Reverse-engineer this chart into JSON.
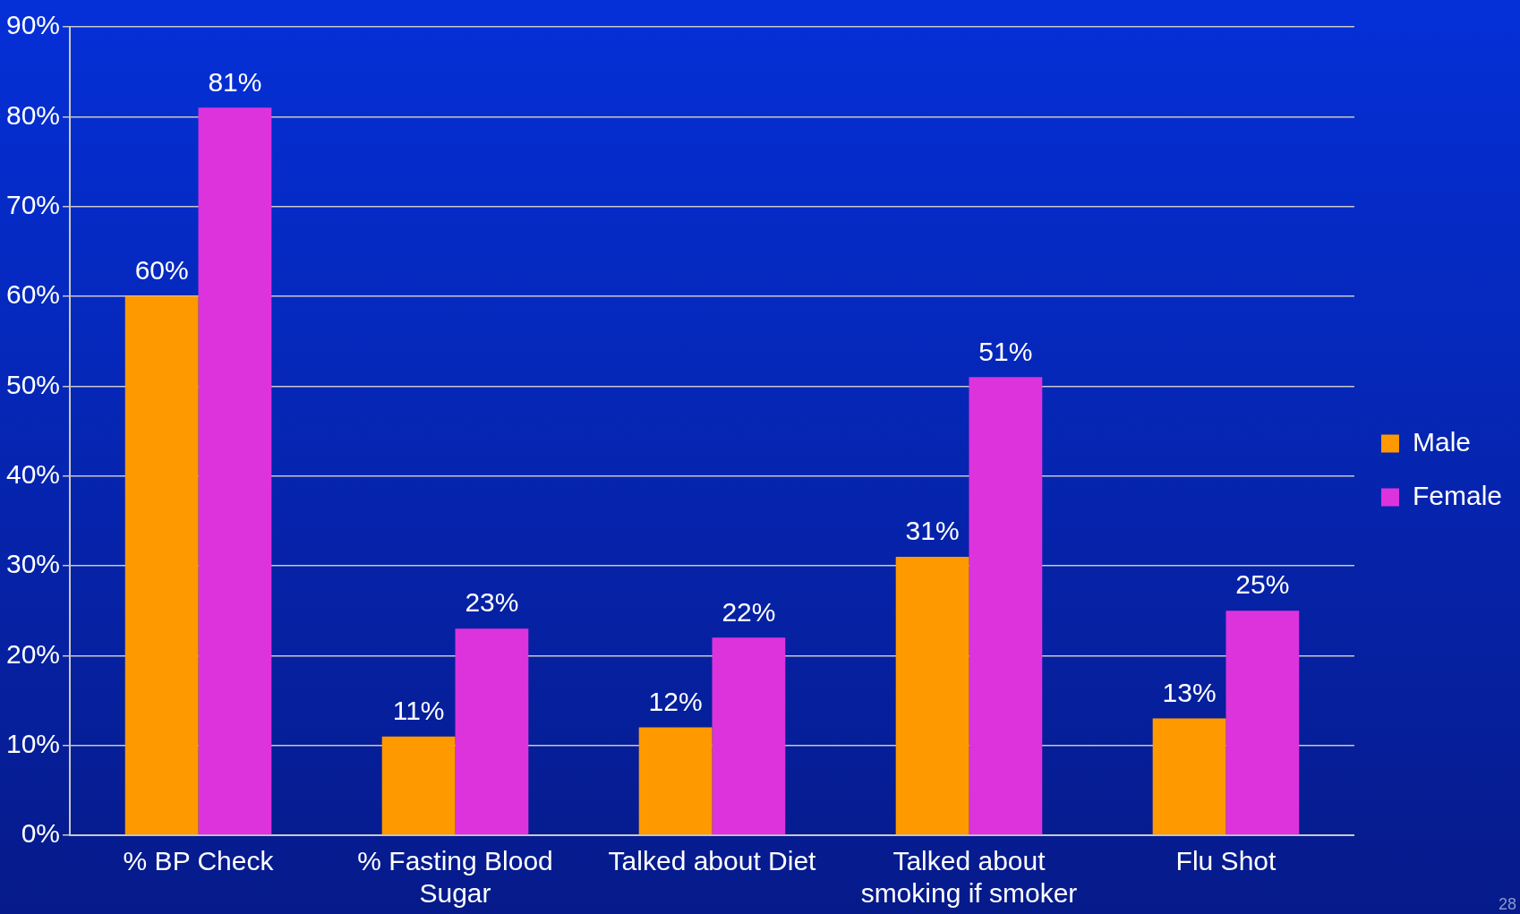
{
  "chart_data": {
    "type": "bar",
    "categories": [
      "% BP Check",
      "% Fasting Blood Sugar",
      "Talked about Diet",
      "Talked about smoking if smoker",
      "Flu Shot"
    ],
    "series": [
      {
        "name": "Male",
        "color": "#ff9900",
        "values": [
          60,
          11,
          12,
          31,
          13
        ],
        "value_labels": [
          "60%",
          "11%",
          "12%",
          "31%",
          "13%"
        ]
      },
      {
        "name": "Female",
        "color": "#dd33dd",
        "values": [
          81,
          23,
          22,
          51,
          25
        ],
        "value_labels": [
          "81%",
          "23%",
          "22%",
          "51%",
          "25%"
        ]
      }
    ],
    "ylim": [
      0,
      90
    ],
    "yticks": [
      {
        "value": 0,
        "label": "0%"
      },
      {
        "value": 10,
        "label": "10%"
      },
      {
        "value": 20,
        "label": "20%"
      },
      {
        "value": 30,
        "label": "30%"
      },
      {
        "value": 40,
        "label": "40%"
      },
      {
        "value": 50,
        "label": "50%"
      },
      {
        "value": 60,
        "label": "60%"
      },
      {
        "value": 70,
        "label": "70%"
      },
      {
        "value": 80,
        "label": "80%"
      },
      {
        "value": 90,
        "label": "90%"
      }
    ],
    "grid": "y",
    "legend": "right",
    "annotations": [
      "28"
    ]
  }
}
